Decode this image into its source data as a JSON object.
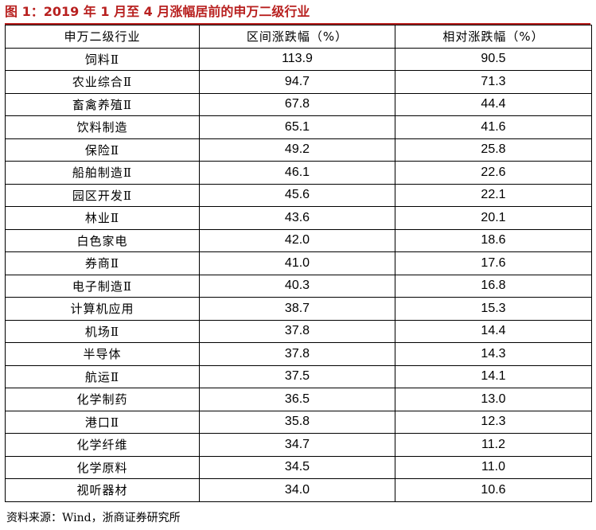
{
  "title": "图 1：2019 年 1 月至 4 月涨幅居前的申万二级行业",
  "table": {
    "headers": [
      "申万二级行业",
      "区间涨跌幅（%）",
      "相对涨跌幅（%）"
    ],
    "rows": [
      [
        "饲料Ⅱ",
        "113.9",
        "90.5"
      ],
      [
        "农业综合Ⅱ",
        "94.7",
        "71.3"
      ],
      [
        "畜禽养殖Ⅱ",
        "67.8",
        "44.4"
      ],
      [
        "饮料制造",
        "65.1",
        "41.6"
      ],
      [
        "保险Ⅱ",
        "49.2",
        "25.8"
      ],
      [
        "船舶制造Ⅱ",
        "46.1",
        "22.6"
      ],
      [
        "园区开发Ⅱ",
        "45.6",
        "22.1"
      ],
      [
        "林业Ⅱ",
        "43.6",
        "20.1"
      ],
      [
        "白色家电",
        "42.0",
        "18.6"
      ],
      [
        "券商Ⅱ",
        "41.0",
        "17.6"
      ],
      [
        "电子制造Ⅱ",
        "40.3",
        "16.8"
      ],
      [
        "计算机应用",
        "38.7",
        "15.3"
      ],
      [
        "机场Ⅱ",
        "37.8",
        "14.4"
      ],
      [
        "半导体",
        "37.8",
        "14.3"
      ],
      [
        "航运Ⅱ",
        "37.5",
        "14.1"
      ],
      [
        "化学制药",
        "36.5",
        "13.0"
      ],
      [
        "港口Ⅱ",
        "35.8",
        "12.3"
      ],
      [
        "化学纤维",
        "34.7",
        "11.2"
      ],
      [
        "化学原料",
        "34.5",
        "11.0"
      ],
      [
        "视听器材",
        "34.0",
        "10.6"
      ]
    ]
  },
  "source": "资料来源：Wind，浙商证券研究所",
  "colors": {
    "title": "#b8201f",
    "rule": "#b8201f",
    "border": "#000000",
    "text": "#000000",
    "background": "#ffffff"
  }
}
